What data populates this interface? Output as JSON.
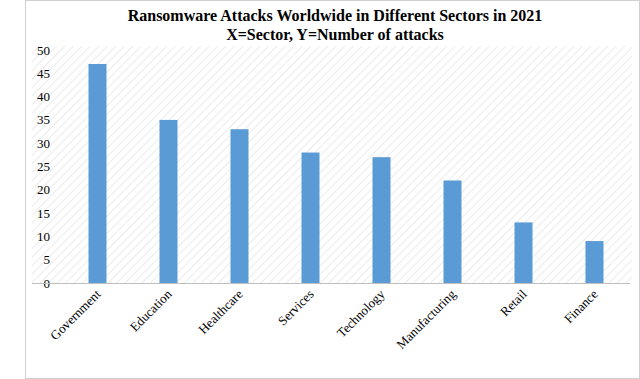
{
  "chart_data": {
    "type": "bar",
    "title": "Ransomware Attacks Worldwide in Different Sectors in 2021",
    "subtitle": "X=Sector, Y=Number of attacks",
    "categories": [
      "Government",
      "Education",
      "Healthcare",
      "Services",
      "Technology",
      "Manufacturing",
      "Retail",
      "Finance"
    ],
    "values": [
      47,
      35,
      33,
      28,
      27,
      22,
      13,
      9
    ],
    "color": "#5b9bd5",
    "ylim": [
      0,
      50
    ],
    "yticks": [
      0,
      5,
      10,
      15,
      20,
      25,
      30,
      35,
      40,
      45,
      50
    ],
    "grid": false
  }
}
